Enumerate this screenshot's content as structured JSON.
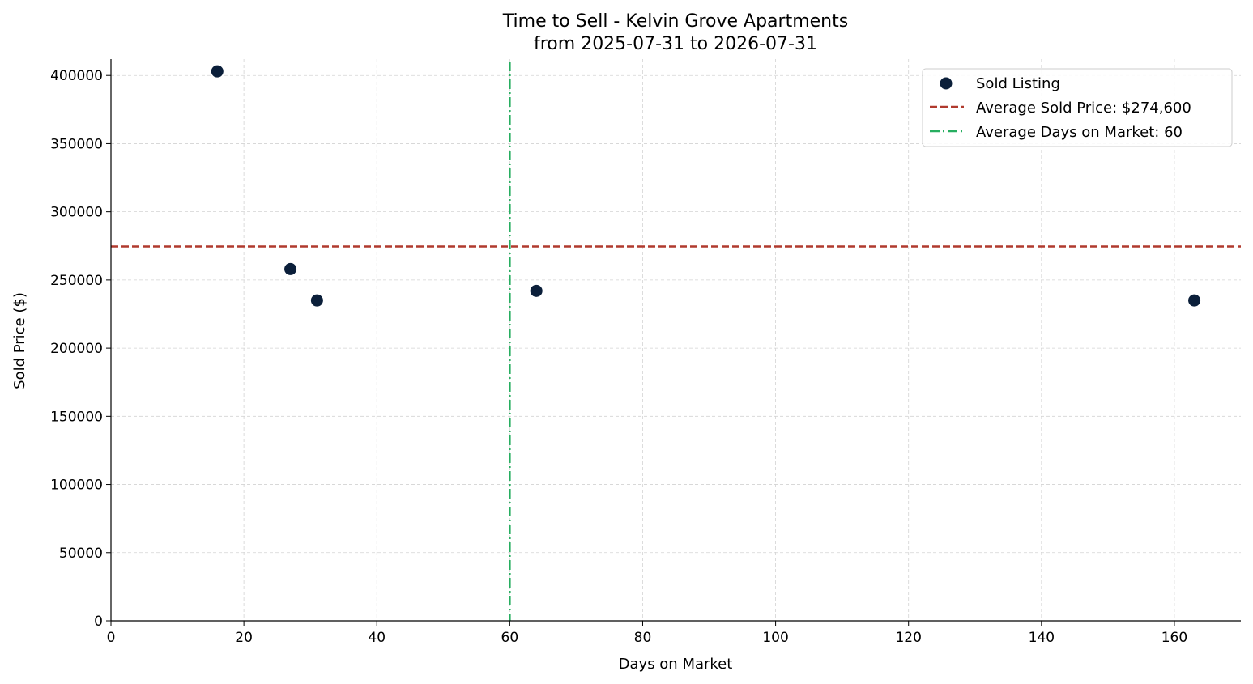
{
  "chart_data": {
    "type": "scatter",
    "title": "Time to Sell - Kelvin Grove Apartments",
    "subtitle": "from 2025-07-31 to 2026-07-31",
    "xlabel": "Days on Market",
    "ylabel": "Sold Price ($)",
    "xlim": [
      0,
      170
    ],
    "ylim": [
      0,
      412000
    ],
    "x_ticks": [
      0,
      20,
      40,
      60,
      80,
      100,
      120,
      140,
      160
    ],
    "y_ticks": [
      0,
      50000,
      100000,
      150000,
      200000,
      250000,
      300000,
      350000,
      400000
    ],
    "grid": true,
    "legend_position": "top-right",
    "series": [
      {
        "name": "Sold Listing",
        "color": "#0b1f3a",
        "points": [
          {
            "x": 16,
            "y": 403000
          },
          {
            "x": 27,
            "y": 258000
          },
          {
            "x": 31,
            "y": 235000
          },
          {
            "x": 64,
            "y": 242000
          },
          {
            "x": 163,
            "y": 235000
          }
        ]
      }
    ],
    "reference_lines": [
      {
        "name": "Average Sold Price: $274,600",
        "orientation": "horizontal",
        "value": 274600,
        "color": "#b03a2e",
        "style": "dashed"
      },
      {
        "name": "Average Days on Market: 60",
        "orientation": "vertical",
        "value": 60,
        "color": "#27ae60",
        "style": "dashdot"
      }
    ]
  }
}
